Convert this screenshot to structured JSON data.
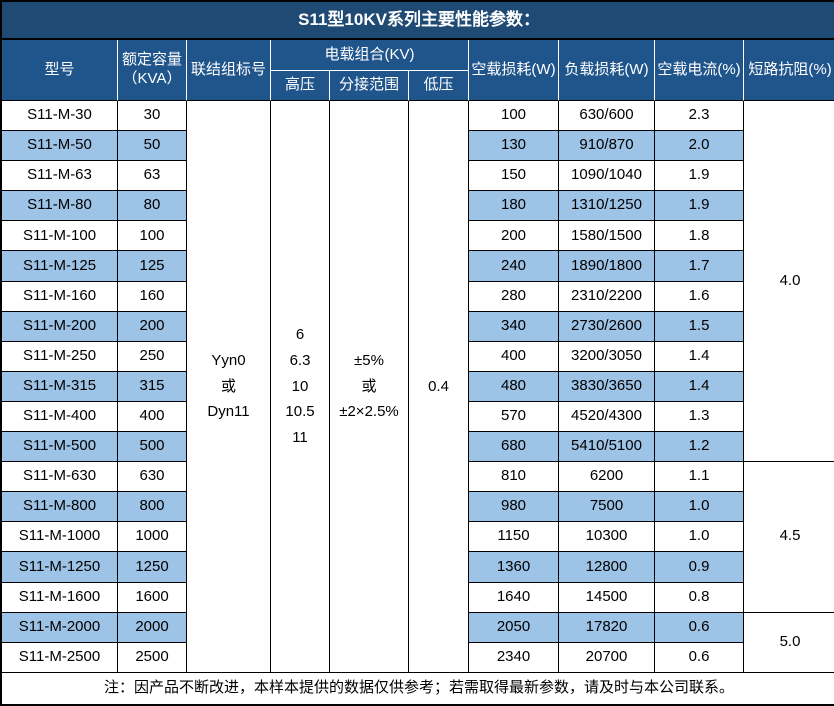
{
  "title": "S11型10KV系列主要性能参数：",
  "table": {
    "headers": {
      "model": "型号",
      "capacity": "额定容量\n（KVA）",
      "connection": "联结组标号",
      "voltage_group": "电载组合(KV)",
      "high_voltage": "高压",
      "tap_range": "分接范围",
      "low_voltage": "低压",
      "no_load_loss": "空载损耗(W)",
      "load_loss": "负载损耗(W)",
      "no_load_current": "空载电流(%)",
      "impedance": "短路抗阻(%)"
    },
    "merged": {
      "connection": "Yyn0\n或\nDyn11",
      "high_voltage": "6\n6.3\n10\n10.5\n11",
      "tap_range": "±5%\n或\n±2×2.5%",
      "low_voltage": "0.4",
      "impedance_groups": [
        {
          "value": "4.0",
          "rows": 12
        },
        {
          "value": "4.5",
          "rows": 5
        },
        {
          "value": "5.0",
          "rows": 2
        }
      ]
    },
    "rows": [
      {
        "model": "S11-M-30",
        "capacity": "30",
        "no_load_loss": "100",
        "load_loss": "630/600",
        "no_load_current": "2.3"
      },
      {
        "model": "S11-M-50",
        "capacity": "50",
        "no_load_loss": "130",
        "load_loss": "910/870",
        "no_load_current": "2.0"
      },
      {
        "model": "S11-M-63",
        "capacity": "63",
        "no_load_loss": "150",
        "load_loss": "1090/1040",
        "no_load_current": "1.9"
      },
      {
        "model": "S11-M-80",
        "capacity": "80",
        "no_load_loss": "180",
        "load_loss": "1310/1250",
        "no_load_current": "1.9"
      },
      {
        "model": "S11-M-100",
        "capacity": "100",
        "no_load_loss": "200",
        "load_loss": "1580/1500",
        "no_load_current": "1.8"
      },
      {
        "model": "S11-M-125",
        "capacity": "125",
        "no_load_loss": "240",
        "load_loss": "1890/1800",
        "no_load_current": "1.7"
      },
      {
        "model": "S11-M-160",
        "capacity": "160",
        "no_load_loss": "280",
        "load_loss": "2310/2200",
        "no_load_current": "1.6"
      },
      {
        "model": "S11-M-200",
        "capacity": "200",
        "no_load_loss": "340",
        "load_loss": "2730/2600",
        "no_load_current": "1.5"
      },
      {
        "model": "S11-M-250",
        "capacity": "250",
        "no_load_loss": "400",
        "load_loss": "3200/3050",
        "no_load_current": "1.4"
      },
      {
        "model": "S11-M-315",
        "capacity": "315",
        "no_load_loss": "480",
        "load_loss": "3830/3650",
        "no_load_current": "1.4"
      },
      {
        "model": "S11-M-400",
        "capacity": "400",
        "no_load_loss": "570",
        "load_loss": "4520/4300",
        "no_load_current": "1.3"
      },
      {
        "model": "S11-M-500",
        "capacity": "500",
        "no_load_loss": "680",
        "load_loss": "5410/5100",
        "no_load_current": "1.2"
      },
      {
        "model": "S11-M-630",
        "capacity": "630",
        "no_load_loss": "810",
        "load_loss": "6200",
        "no_load_current": "1.1"
      },
      {
        "model": "S11-M-800",
        "capacity": "800",
        "no_load_loss": "980",
        "load_loss": "7500",
        "no_load_current": "1.0"
      },
      {
        "model": "S11-M-1000",
        "capacity": "1000",
        "no_load_loss": "1150",
        "load_loss": "10300",
        "no_load_current": "1.0"
      },
      {
        "model": "S11-M-1250",
        "capacity": "1250",
        "no_load_loss": "1360",
        "load_loss": "12800",
        "no_load_current": "0.9"
      },
      {
        "model": "S11-M-1600",
        "capacity": "1600",
        "no_load_loss": "1640",
        "load_loss": "14500",
        "no_load_current": "0.8"
      },
      {
        "model": "S11-M-2000",
        "capacity": "2000",
        "no_load_loss": "2050",
        "load_loss": "17820",
        "no_load_current": "0.6"
      },
      {
        "model": "S11-M-2500",
        "capacity": "2500",
        "no_load_loss": "2340",
        "load_loss": "20700",
        "no_load_current": "0.6"
      }
    ]
  },
  "footer_note": "注：因产品不断改进，本样本提供的数据仅供参考；若需取得最新参数，请及时与本公司联系。",
  "colors": {
    "title_bg": "#1E4A74",
    "header_bg": "#20558C",
    "stripe": "#9DC3E6",
    "border": "#000000",
    "header_text": "#FFFFFF",
    "body_text": "#000000"
  }
}
